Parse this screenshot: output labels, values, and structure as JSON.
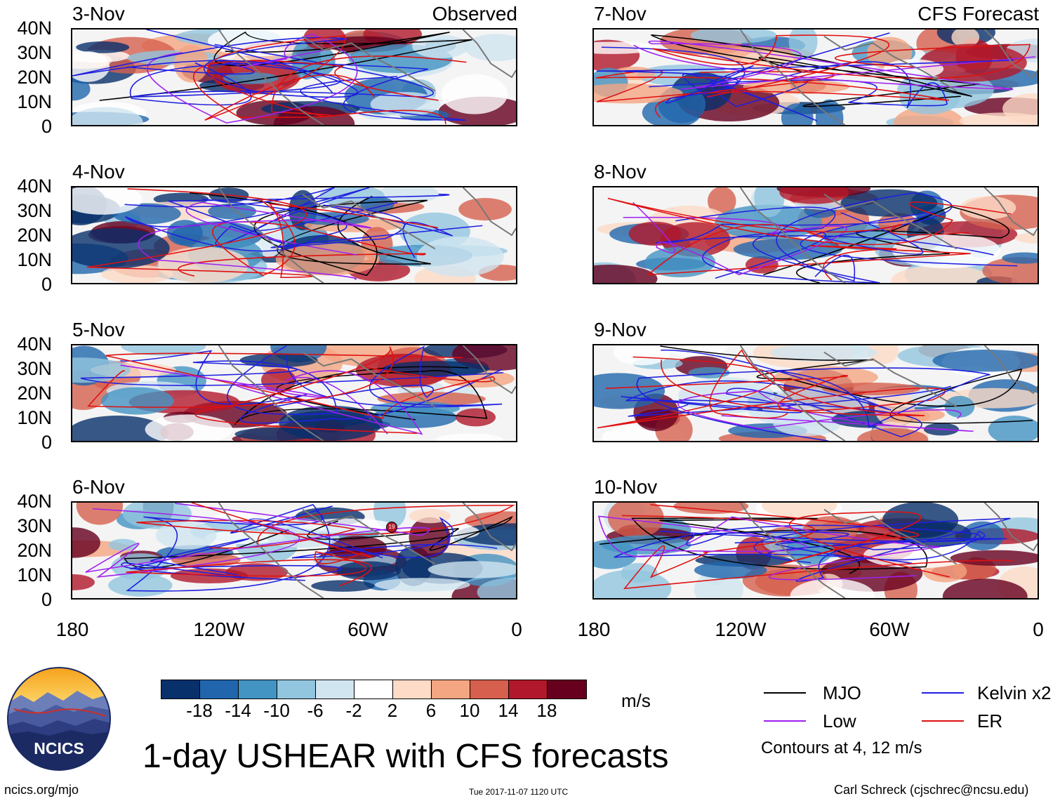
{
  "panels_left": [
    {
      "date": "3-Nov",
      "header": "Observed"
    },
    {
      "date": "4-Nov",
      "header": ""
    },
    {
      "date": "5-Nov",
      "header": ""
    },
    {
      "date": "6-Nov",
      "header": ""
    }
  ],
  "panels_right": [
    {
      "date": "7-Nov",
      "header": "CFS Forecast"
    },
    {
      "date": "8-Nov",
      "header": ""
    },
    {
      "date": "9-Nov",
      "header": ""
    },
    {
      "date": "10-Nov",
      "header": ""
    }
  ],
  "y_ticks": [
    "40N",
    "30N",
    "20N",
    "10N",
    "0"
  ],
  "x_ticks": [
    "180",
    "120W",
    "60W",
    "0"
  ],
  "colorbar": {
    "colors": [
      "#08306b",
      "#2166ac",
      "#4393c3",
      "#92c5de",
      "#d1e5f0",
      "#ffffff",
      "#fddbc7",
      "#f4a582",
      "#d6604d",
      "#b2182b",
      "#67001f"
    ],
    "labels": [
      "-18",
      "-14",
      "-10",
      "-6",
      "-2",
      "2",
      "6",
      "10",
      "14",
      "18"
    ],
    "units": "m/s"
  },
  "legend": {
    "mjo": {
      "label": "MJO",
      "color": "#000000"
    },
    "kelvin": {
      "label": "Kelvin x2",
      "color": "#1f1fe0"
    },
    "low": {
      "label": "Low",
      "color": "#a020f0"
    },
    "er": {
      "label": "ER",
      "color": "#e01010"
    },
    "note": "Contours at 4, 12 m/s"
  },
  "title": "1-day USHEAR with CFS forecasts",
  "logo_text": "NCICS",
  "footer": {
    "left": "ncics.org/mjo",
    "center": "Tue 2017-11-07 1120 UTC",
    "right": "Carl Schreck (cjschrec@ncsu.edu)"
  },
  "storm_marker": "19"
}
